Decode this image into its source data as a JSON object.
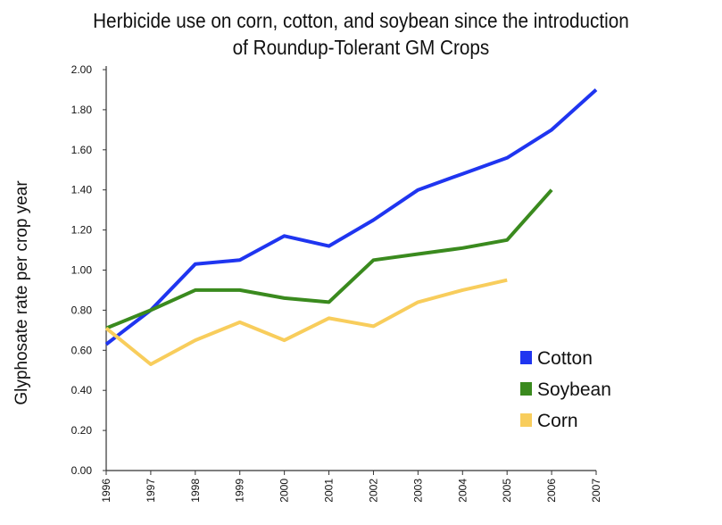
{
  "chart_data": {
    "type": "line",
    "title_line1": "Herbicide use on corn, cotton, and soybean since the introduction",
    "title_line2": "of Roundup-Tolerant GM Crops",
    "xlabel": "",
    "ylabel": "Glyphosate rate per crop year",
    "x": [
      "1996",
      "1997",
      "1998",
      "1999",
      "2000",
      "2001",
      "2002",
      "2003",
      "2004",
      "2005",
      "2006",
      "2007"
    ],
    "ylim": [
      0,
      2.0
    ],
    "yticks": [
      "0.00",
      "0.20",
      "0.40",
      "0.60",
      "0.80",
      "1.00",
      "1.20",
      "1.40",
      "1.60",
      "1.80",
      "2.00"
    ],
    "grid": false,
    "legend_position": "bottom-right",
    "series": [
      {
        "name": "Cotton",
        "color": "#1f35f0",
        "values": [
          0.63,
          0.8,
          1.03,
          1.05,
          1.17,
          1.12,
          1.25,
          1.4,
          1.48,
          1.56,
          1.7,
          1.9
        ]
      },
      {
        "name": "Soybean",
        "color": "#3a8a1e",
        "values": [
          0.71,
          0.8,
          0.9,
          0.9,
          0.86,
          0.84,
          1.05,
          1.08,
          1.11,
          1.15,
          1.4,
          null
        ]
      },
      {
        "name": "Corn",
        "color": "#f8cd5c",
        "values": [
          0.71,
          0.53,
          0.65,
          0.74,
          0.65,
          0.76,
          0.72,
          0.84,
          0.9,
          0.95,
          null,
          null
        ]
      }
    ]
  }
}
